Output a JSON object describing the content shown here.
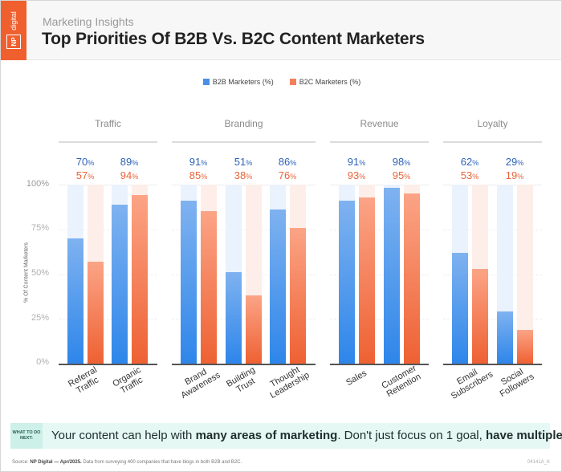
{
  "header": {
    "logo_np": "NP",
    "logo_digital": "digital",
    "subtitle": "Marketing Insights",
    "title": "Top Priorities Of B2B Vs. B2C Content Marketers",
    "brand_color": "#f0602f"
  },
  "legend": {
    "b2b": "B2B Marketers (%)",
    "b2c": "B2C Marketers (%)",
    "b2b_color": "#2e86ea",
    "b2c_color": "#ee6133"
  },
  "axis": {
    "ylabel": "% Of Content Marketers",
    "ticks": [
      "100%",
      "75%",
      "50%",
      "25%",
      "0%"
    ]
  },
  "groups": [
    {
      "title": "Traffic"
    },
    {
      "title": "Branding"
    },
    {
      "title": "Revenue"
    },
    {
      "title": "Loyalty"
    }
  ],
  "items": [
    {
      "label1": "Referral",
      "label2": "Traffic",
      "b2b": "70",
      "b2c": "57"
    },
    {
      "label1": "Organic",
      "label2": "Traffic",
      "b2b": "89",
      "b2c": "94"
    },
    {
      "label1": "Brand",
      "label2": "Awareness",
      "b2b": "91",
      "b2c": "85"
    },
    {
      "label1": "Building",
      "label2": "Trust",
      "b2b": "51",
      "b2c": "38"
    },
    {
      "label1": "Thought",
      "label2": "Leadership",
      "b2b": "86",
      "b2c": "76"
    },
    {
      "label1": "Sales",
      "label2": "",
      "b2b": "91",
      "b2c": "93"
    },
    {
      "label1": "Customer",
      "label2": "Retention",
      "b2b": "98",
      "b2c": "95"
    },
    {
      "label1": "Email",
      "label2": "Subscribers",
      "b2b": "62",
      "b2c": "53"
    },
    {
      "label1": "Social",
      "label2": "Followers",
      "b2b": "29",
      "b2c": "19"
    }
  ],
  "pct_suffix": "%",
  "cta": {
    "badge": "WHAT TO DO NEXT:",
    "text_1": "Your content can help with ",
    "bold_1": "many areas of marketing",
    "text_2": ". Don't just focus on 1 goal, ",
    "bold_2": "have multiple",
    "text_3": "."
  },
  "footer": {
    "source_label": "Source: ",
    "source_bold": "NP Digital — Apr/2025.",
    "source_text": " Data from surveying 400 companies that have blogs in both B2B and B2C.",
    "code": "04141A_K"
  },
  "chart_data": {
    "type": "bar",
    "title": "Top Priorities Of B2B Vs. B2C Content Marketers",
    "subtitle": "Marketing Insights",
    "xlabel": "",
    "ylabel": "% Of Content Marketers",
    "ylim": [
      0,
      100
    ],
    "yticks": [
      "0%",
      "25%",
      "50%",
      "75%",
      "100%"
    ],
    "grid": true,
    "legend_position": "top",
    "category_groups": [
      {
        "group": "Traffic",
        "categories": [
          "Referral Traffic",
          "Organic Traffic"
        ]
      },
      {
        "group": "Branding",
        "categories": [
          "Brand Awareness",
          "Building Trust",
          "Thought Leadership"
        ]
      },
      {
        "group": "Revenue",
        "categories": [
          "Sales",
          "Customer Retention"
        ]
      },
      {
        "group": "Loyalty",
        "categories": [
          "Email Subscribers",
          "Social Followers"
        ]
      }
    ],
    "categories": [
      "Referral Traffic",
      "Organic Traffic",
      "Brand Awareness",
      "Building Trust",
      "Thought Leadership",
      "Sales",
      "Customer Retention",
      "Email Subscribers",
      "Social Followers"
    ],
    "series": [
      {
        "name": "B2B Marketers (%)",
        "color": "#2e86ea",
        "values": [
          70,
          89,
          91,
          51,
          86,
          91,
          98,
          62,
          29
        ]
      },
      {
        "name": "B2C Marketers (%)",
        "color": "#ee6133",
        "values": [
          57,
          94,
          85,
          38,
          76,
          93,
          95,
          53,
          19
        ]
      }
    ]
  }
}
